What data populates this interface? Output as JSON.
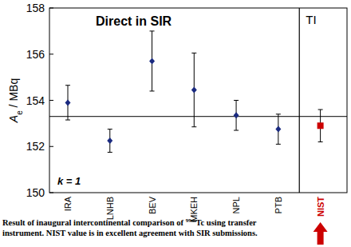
{
  "chart_data": {
    "type": "scatter",
    "title": "Direct in SIR",
    "ylabel": [
      "A",
      "e",
      " / MBq"
    ],
    "categories": [
      "IRA",
      "LNHB",
      "BEV",
      "MKEH",
      "NPL",
      "PTB",
      "NIST"
    ],
    "series": [
      {
        "color": "#1a2a80",
        "marker": "diamond",
        "values": [
          153.9,
          152.25,
          155.7,
          154.45,
          153.35,
          152.75,
          null
        ],
        "errors": [
          0.75,
          0.5,
          1.3,
          1.6,
          0.65,
          0.65,
          null
        ]
      },
      {
        "color": "#cc0000",
        "marker": "square",
        "values": [
          null,
          null,
          null,
          null,
          null,
          null,
          152.9
        ],
        "errors": [
          null,
          null,
          null,
          null,
          null,
          null,
          0.7
        ]
      }
    ],
    "reference_line": 153.3,
    "ylim": [
      150,
      158
    ],
    "yticks": [
      150,
      152,
      154,
      156,
      158
    ],
    "annotations": [
      "k = 1",
      "TI"
    ],
    "caption": {
      "lines": [
        [
          "Result of inaugural intercontinental comparison of ",
          "99m",
          "Tc using transfer"
        ],
        [
          "instrument. NIST value is in excellent agreement with SIR submissions."
        ]
      ]
    }
  }
}
